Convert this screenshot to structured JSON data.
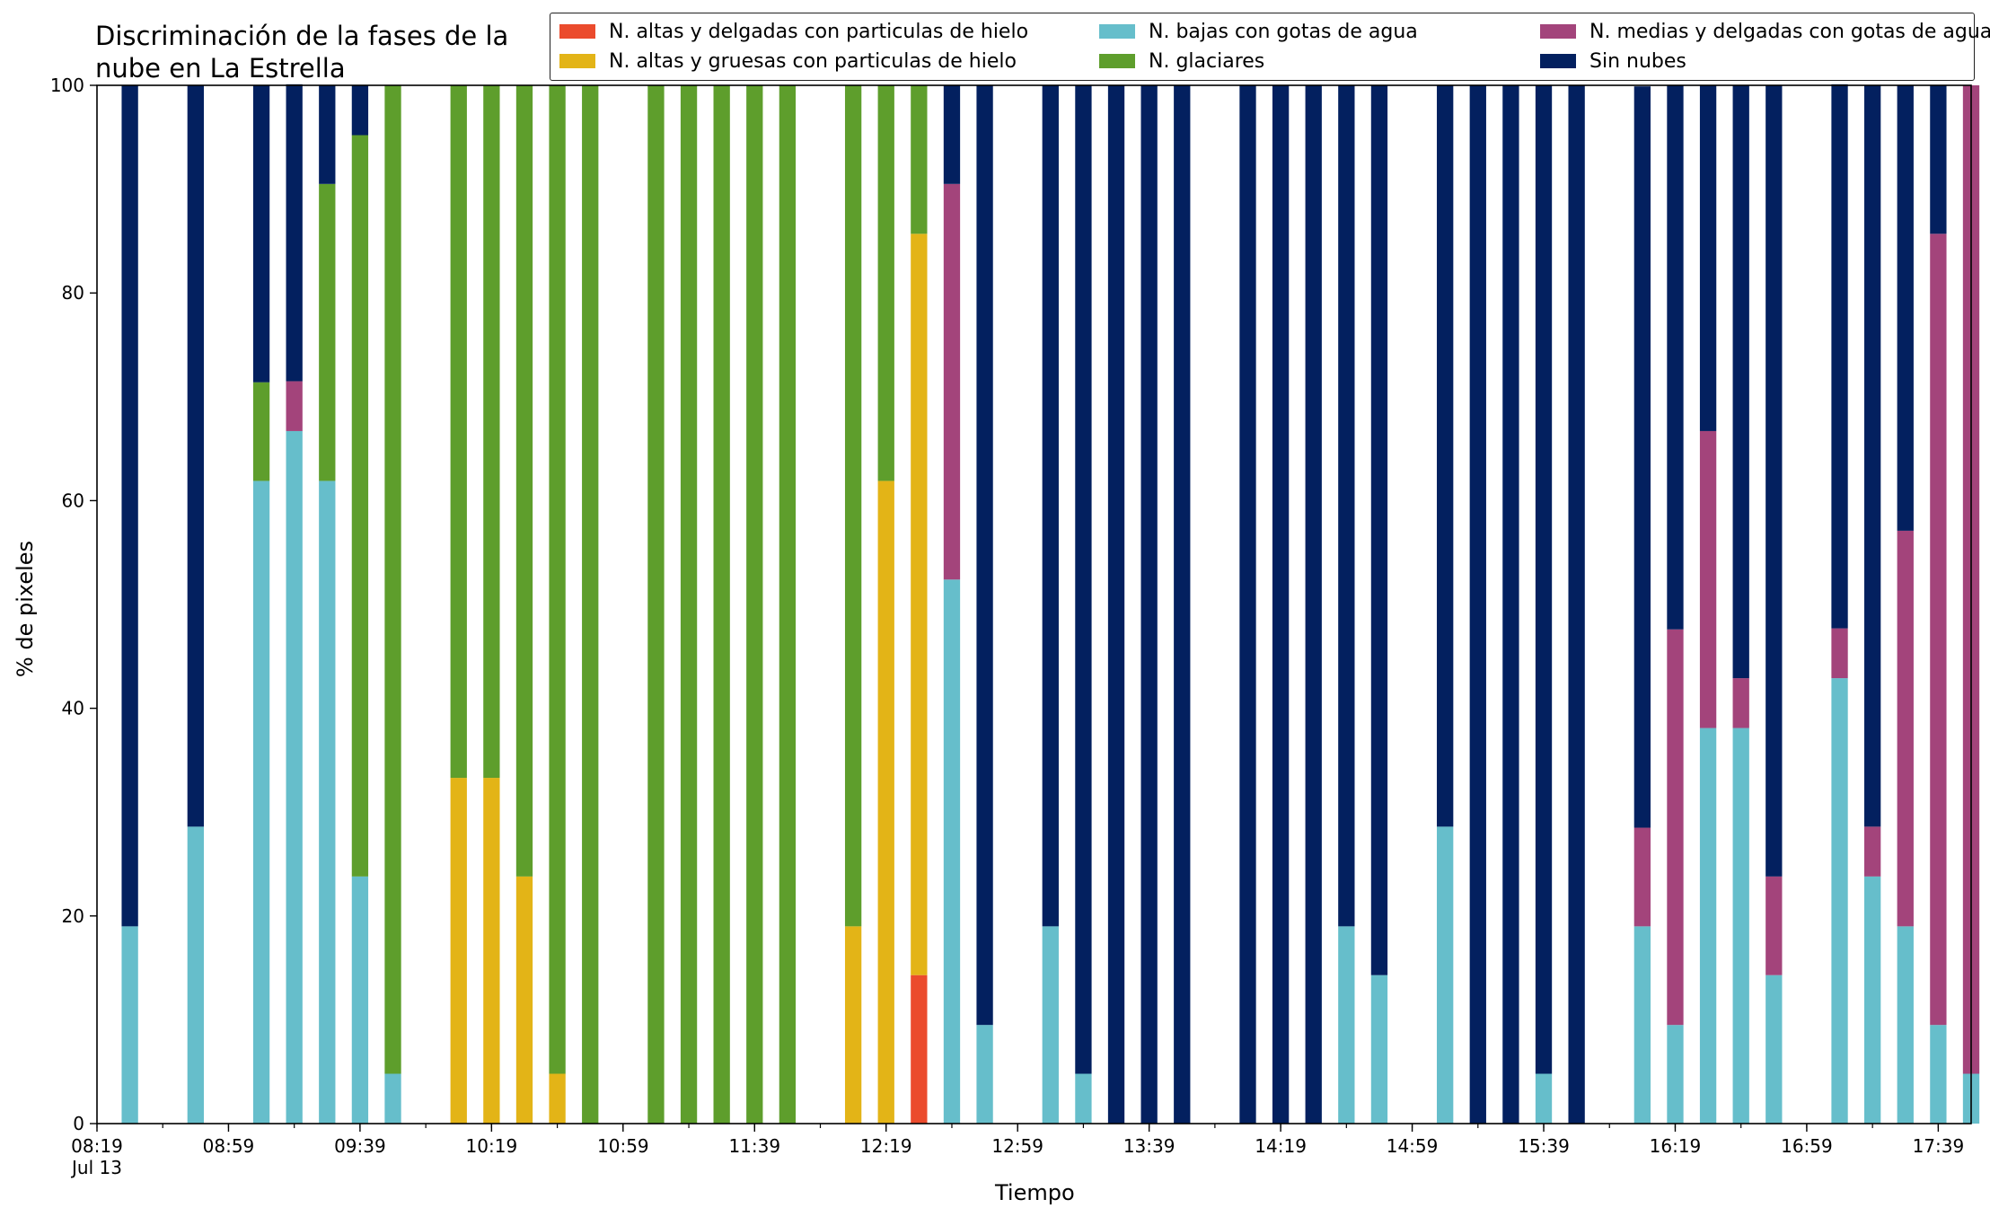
{
  "chart_data": {
    "type": "bar",
    "stacked": true,
    "title": "Discriminación de la fases de la\nnube en La Estrella",
    "xlabel": "Tiempo",
    "ylabel": "% de pixeles",
    "ylim": [
      0,
      100
    ],
    "yticks": [
      0,
      20,
      40,
      60,
      80,
      100
    ],
    "xticks": [
      "08:19\nJul 13",
      "08:59",
      "09:39",
      "10:19",
      "10:59",
      "11:39",
      "12:19",
      "12:59",
      "13:39",
      "14:19",
      "14:59",
      "15:39",
      "16:19",
      "16:59",
      "17:39"
    ],
    "x_range": [
      "08:19",
      "17:49"
    ],
    "bar_width_minutes": 5,
    "grid": false,
    "legend_position": "top-right",
    "legend": [
      {
        "name": "N. altas y delgadas con particulas de hielo",
        "color": "#EB4B2D"
      },
      {
        "name": "N. altas y gruesas con particulas de hielo",
        "color": "#E3B417"
      },
      {
        "name": "N. bajas con gotas de agua",
        "color": "#66BECB"
      },
      {
        "name": "N. glaciares",
        "color": "#5E9E2C"
      },
      {
        "name": "N. medias y delgadas con gotas de agua",
        "color": "#A3447B"
      },
      {
        "name": "Sin nubes",
        "color": "#03205F"
      }
    ],
    "x": [
      "08:29",
      "08:49",
      "09:09",
      "09:19",
      "09:29",
      "09:39",
      "09:49",
      "10:09",
      "10:19",
      "10:29",
      "10:39",
      "10:49",
      "11:09",
      "11:19",
      "11:29",
      "11:39",
      "11:49",
      "12:09",
      "12:19",
      "12:29",
      "12:39",
      "12:49",
      "13:09",
      "13:19",
      "13:29",
      "13:39",
      "13:49",
      "14:09",
      "14:19",
      "14:29",
      "14:39",
      "14:49",
      "15:09",
      "15:19",
      "15:29",
      "15:39",
      "15:49",
      "16:09",
      "16:19",
      "16:29",
      "16:39",
      "16:49",
      "17:09",
      "17:19",
      "17:29",
      "17:39",
      "17:49"
    ],
    "series": [
      {
        "name": "N. altas y delgadas con particulas de hielo",
        "values": [
          0,
          0,
          0,
          0,
          0,
          0,
          0,
          0,
          0,
          0,
          0,
          0,
          0,
          0,
          0,
          0,
          0,
          0,
          0,
          14.3,
          0,
          0,
          0,
          0,
          0,
          0,
          0,
          0,
          0,
          0,
          0,
          0,
          0,
          0,
          0,
          0,
          0,
          0,
          0,
          0,
          0,
          0,
          0,
          0,
          0,
          0,
          0
        ]
      },
      {
        "name": "N. altas y gruesas con particulas de hielo",
        "values": [
          0,
          0,
          0,
          0,
          0,
          0,
          0,
          33.3,
          33.3,
          23.8,
          4.8,
          0,
          0,
          0,
          0,
          0,
          0,
          19.0,
          61.9,
          71.4,
          0,
          0,
          0,
          0,
          0,
          0,
          0,
          0,
          0,
          0,
          0,
          0,
          0,
          0,
          0,
          0,
          0,
          0,
          0,
          0,
          0,
          0,
          0,
          0,
          0,
          0,
          0
        ]
      },
      {
        "name": "N. bajas con gotas de agua",
        "values": [
          19.0,
          28.6,
          61.9,
          66.7,
          61.9,
          23.8,
          4.8,
          0,
          0,
          0,
          0,
          0,
          0,
          0,
          0,
          0,
          0,
          0,
          0,
          0,
          52.4,
          9.5,
          19.0,
          4.8,
          0,
          0,
          0,
          0,
          0,
          0,
          19.0,
          14.3,
          28.6,
          0,
          0,
          4.8,
          0,
          19.0,
          9.5,
          38.1,
          38.1,
          14.3,
          42.9,
          23.8,
          19.0,
          9.5,
          4.8
        ]
      },
      {
        "name": "N. glaciares",
        "values": [
          0,
          0,
          9.5,
          0,
          28.6,
          71.4,
          95.2,
          66.7,
          66.7,
          76.2,
          95.2,
          100,
          100,
          100,
          100,
          100,
          100,
          81.0,
          38.1,
          14.3,
          0,
          0,
          0,
          0,
          0,
          0,
          0,
          0,
          0,
          0,
          0,
          0,
          0,
          0,
          0,
          0,
          0,
          0,
          0,
          0,
          0,
          0,
          0,
          0,
          0,
          0,
          0
        ]
      },
      {
        "name": "N. medias y delgadas con gotas de agua",
        "values": [
          0,
          0,
          0,
          4.8,
          0,
          0,
          0,
          0,
          0,
          0,
          0,
          0,
          0,
          0,
          0,
          0,
          0,
          0,
          0,
          0,
          38.1,
          0,
          0,
          0,
          0,
          0,
          0,
          0,
          0,
          0,
          0,
          0,
          0,
          0,
          0,
          0,
          0,
          9.5,
          38.1,
          28.6,
          4.8,
          9.5,
          4.8,
          4.8,
          38.1,
          76.2,
          95.2
        ]
      },
      {
        "name": "Sin nubes",
        "values": [
          81.0,
          71.4,
          28.6,
          28.6,
          9.5,
          4.8,
          0,
          0,
          0,
          0,
          0,
          0,
          0,
          0,
          0,
          0,
          0,
          0,
          0,
          0,
          9.5,
          90.5,
          81.0,
          95.2,
          100,
          100,
          100,
          100,
          100,
          100,
          81.0,
          85.7,
          71.4,
          100,
          100,
          95.2,
          100,
          71.4,
          52.4,
          33.3,
          57.1,
          76.2,
          52.4,
          71.4,
          42.9,
          14.3,
          0
        ]
      }
    ]
  }
}
